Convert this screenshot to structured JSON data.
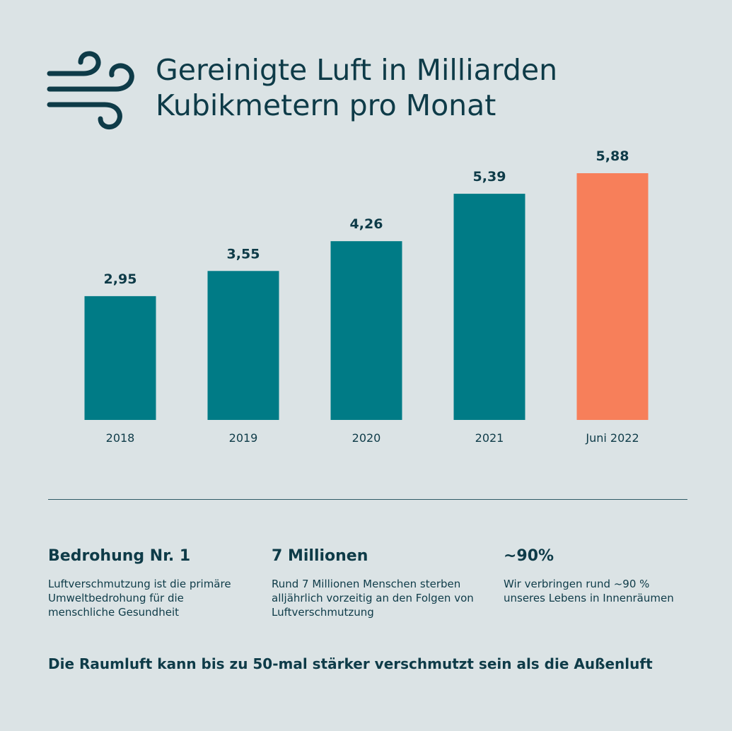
{
  "header": {
    "icon": "wind-icon",
    "title_line1": "Gereinigte Luft in Milliarden",
    "title_line2": "Kubikmetern pro Monat"
  },
  "chart_data": {
    "type": "bar",
    "title": "Gereinigte Luft in Milliarden Kubikmetern pro Monat",
    "categories": [
      "2018",
      "2019",
      "2020",
      "2021",
      "Juni 2022"
    ],
    "values": [
      2.95,
      3.55,
      4.26,
      5.39,
      5.88
    ],
    "value_labels": [
      "2,95",
      "3,55",
      "4,26",
      "5,39",
      "5,88"
    ],
    "highlight_index": 4,
    "colors": {
      "bar": "#007b86",
      "highlight": "#f77f5a",
      "text": "#0e3b48"
    },
    "ylim": [
      0,
      5.88
    ],
    "grid": false,
    "legend": "none"
  },
  "stats": [
    {
      "headline": "Bedrohung Nr. 1",
      "text": "Luftverschmutzung ist die primäre Umweltbedrohung für die menschliche Gesundheit"
    },
    {
      "headline": "7 Millionen",
      "text": "Rund 7 Millionen Menschen sterben alljährlich vorzeitig an den Folgen von Luftverschmutzung"
    },
    {
      "headline": "~90%",
      "text": "Wir verbringen rund ~90 % unseres Lebens in Innenräumen"
    }
  ],
  "footer": {
    "text": "Die Raumluft kann bis zu 50-mal stärker verschmutzt sein als die Außenluft"
  }
}
